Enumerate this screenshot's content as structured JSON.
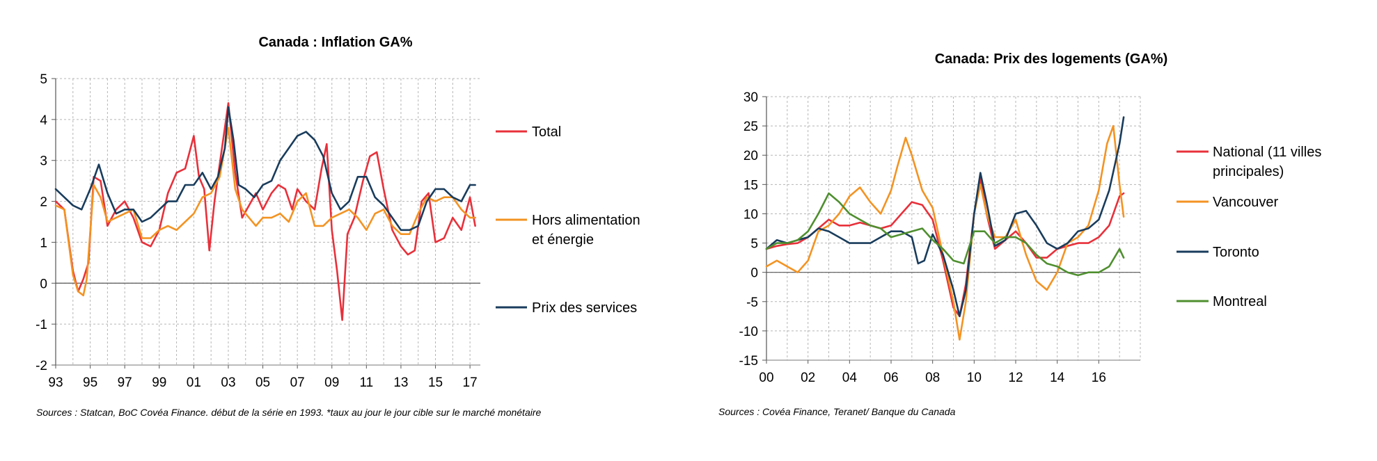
{
  "chart_data": [
    {
      "type": "line",
      "title": "Canada : Inflation GA%",
      "source": "Sources : Statcan, BoC Covéa Finance. début de la série en 1993. *taux au jour le jour cible  sur le marché monétaire",
      "xlim": [
        1993,
        2017.6
      ],
      "ylim": [
        -2,
        5
      ],
      "y_ticks": [
        "5",
        "4",
        "3",
        "2",
        "1",
        "0",
        "-1",
        "-2"
      ],
      "x_ticks": [
        "93",
        "95",
        "97",
        "99",
        "01",
        "03",
        "05",
        "07",
        "09",
        "11",
        "13",
        "15",
        "17"
      ],
      "series": [
        {
          "name": "Total",
          "color": "#e8303a",
          "x": [
            1993.0,
            1993.5,
            1994.0,
            1994.3,
            1994.6,
            1994.9,
            1995.2,
            1995.6,
            1996.0,
            1996.5,
            1997.0,
            1997.5,
            1998.0,
            1998.5,
            1999.0,
            1999.5,
            2000.0,
            2000.5,
            2001.0,
            2001.3,
            2001.6,
            2001.9,
            2002.2,
            2002.6,
            2003.0,
            2003.4,
            2003.8,
            2004.2,
            2004.6,
            2005.0,
            2005.5,
            2005.9,
            2006.3,
            2006.7,
            2007.0,
            2007.5,
            2008.0,
            2008.4,
            2008.7,
            2009.0,
            2009.3,
            2009.6,
            2009.9,
            2010.3,
            2010.8,
            2011.2,
            2011.6,
            2012.0,
            2012.5,
            2013.0,
            2013.4,
            2013.8,
            2014.2,
            2014.6,
            2015.0,
            2015.5,
            2016.0,
            2016.5,
            2017.0,
            2017.3
          ],
          "values": [
            2.0,
            1.8,
            0.3,
            -0.2,
            0.1,
            0.5,
            2.6,
            2.5,
            1.4,
            1.8,
            2.0,
            1.6,
            1.0,
            0.9,
            1.3,
            2.2,
            2.7,
            2.8,
            3.6,
            2.6,
            2.3,
            0.8,
            2.0,
            3.2,
            4.4,
            2.7,
            1.6,
            1.9,
            2.2,
            1.8,
            2.2,
            2.4,
            2.3,
            1.8,
            2.3,
            2.0,
            1.8,
            2.8,
            3.4,
            1.3,
            0.3,
            -0.9,
            1.2,
            1.6,
            2.5,
            3.1,
            3.2,
            2.3,
            1.3,
            0.9,
            0.7,
            0.8,
            2.0,
            2.2,
            1.0,
            1.1,
            1.6,
            1.3,
            2.1,
            1.4
          ]
        },
        {
          "name": "Hors alimentation et énergie",
          "color": "#f39322",
          "x": [
            1993.0,
            1993.5,
            1994.0,
            1994.3,
            1994.6,
            1994.8,
            1995.2,
            1995.6,
            1996.0,
            1996.5,
            1997.0,
            1997.5,
            1998.0,
            1998.5,
            1999.0,
            1999.5,
            2000.0,
            2000.5,
            2001.0,
            2001.5,
            2002.0,
            2002.5,
            2003.0,
            2003.4,
            2003.8,
            2004.2,
            2004.6,
            2005.0,
            2005.5,
            2006.0,
            2006.5,
            2007.0,
            2007.5,
            2008.0,
            2008.5,
            2009.0,
            2009.5,
            2010.0,
            2010.5,
            2011.0,
            2011.5,
            2012.0,
            2012.5,
            2013.0,
            2013.5,
            2014.0,
            2014.5,
            2015.0,
            2015.5,
            2016.0,
            2016.5,
            2017.0,
            2017.3
          ],
          "values": [
            1.9,
            1.8,
            0.2,
            -0.2,
            -0.3,
            0.1,
            2.4,
            2.1,
            1.5,
            1.6,
            1.7,
            1.8,
            1.1,
            1.1,
            1.3,
            1.4,
            1.3,
            1.5,
            1.7,
            2.1,
            2.2,
            2.6,
            3.8,
            2.3,
            1.8,
            1.6,
            1.4,
            1.6,
            1.6,
            1.7,
            1.5,
            2.0,
            2.2,
            1.4,
            1.4,
            1.6,
            1.7,
            1.8,
            1.6,
            1.3,
            1.7,
            1.8,
            1.4,
            1.2,
            1.2,
            1.7,
            2.1,
            2.0,
            2.1,
            2.1,
            1.8,
            1.6,
            1.6
          ]
        },
        {
          "name": "Prix des services",
          "color": "#193c5c",
          "x": [
            1993.0,
            1993.5,
            1994.0,
            1994.5,
            1995.0,
            1995.5,
            1996.0,
            1996.5,
            1997.0,
            1997.5,
            1998.0,
            1998.5,
            1999.0,
            1999.5,
            2000.0,
            2000.5,
            2001.0,
            2001.5,
            2002.0,
            2002.4,
            2002.8,
            2003.0,
            2003.3,
            2003.6,
            2004.0,
            2004.5,
            2005.0,
            2005.5,
            2006.0,
            2006.5,
            2007.0,
            2007.5,
            2008.0,
            2008.5,
            2009.0,
            2009.5,
            2010.0,
            2010.5,
            2011.0,
            2011.5,
            2012.0,
            2012.5,
            2013.0,
            2013.5,
            2014.0,
            2014.5,
            2015.0,
            2015.5,
            2016.0,
            2016.5,
            2017.0,
            2017.3
          ],
          "values": [
            2.3,
            2.1,
            1.9,
            1.8,
            2.3,
            2.9,
            2.2,
            1.7,
            1.8,
            1.8,
            1.5,
            1.6,
            1.8,
            2.0,
            2.0,
            2.4,
            2.4,
            2.7,
            2.3,
            2.6,
            3.3,
            4.3,
            3.5,
            2.4,
            2.3,
            2.1,
            2.4,
            2.5,
            3.0,
            3.3,
            3.6,
            3.7,
            3.5,
            3.1,
            2.2,
            1.8,
            2.0,
            2.6,
            2.6,
            2.1,
            1.9,
            1.6,
            1.3,
            1.3,
            1.4,
            2.0,
            2.3,
            2.3,
            2.1,
            2.0,
            2.4,
            2.4
          ]
        }
      ]
    },
    {
      "type": "line",
      "title": "Canada: Prix des logements (GA%)",
      "source": "Sources : Covéa Finance, Teranet/ Banque du Canada",
      "xlim": [
        2000,
        2018
      ],
      "ylim": [
        -15,
        30
      ],
      "y_ticks": [
        "30",
        "25",
        "20",
        "15",
        "10",
        "5",
        "0",
        "-5",
        "-10",
        "-15"
      ],
      "x_ticks": [
        "00",
        "02",
        "04",
        "06",
        "08",
        "10",
        "12",
        "14",
        "16"
      ],
      "series": [
        {
          "name": "National (11 villes principales)",
          "color": "#e8303a",
          "x": [
            2000.0,
            2000.5,
            2001.0,
            2001.5,
            2002.0,
            2002.5,
            2003.0,
            2003.5,
            2004.0,
            2004.5,
            2005.0,
            2005.5,
            2006.0,
            2006.5,
            2007.0,
            2007.5,
            2008.0,
            2008.5,
            2009.0,
            2009.3,
            2009.6,
            2010.0,
            2010.3,
            2010.6,
            2011.0,
            2011.5,
            2012.0,
            2012.5,
            2013.0,
            2013.5,
            2014.0,
            2014.5,
            2015.0,
            2015.5,
            2016.0,
            2016.5,
            2017.0,
            2017.2
          ],
          "values": [
            4.0,
            4.5,
            4.8,
            5.0,
            6.0,
            7.5,
            9.0,
            8.0,
            8.0,
            8.5,
            8.0,
            7.5,
            8.0,
            10.0,
            12.0,
            11.5,
            9.0,
            2.0,
            -6.0,
            -7.5,
            -2.0,
            10.0,
            16.0,
            10.0,
            4.0,
            5.5,
            7.0,
            5.0,
            2.5,
            2.5,
            4.0,
            4.5,
            5.0,
            5.0,
            6.0,
            8.0,
            13.0,
            13.5
          ]
        },
        {
          "name": "Vancouver",
          "color": "#f39322",
          "x": [
            2000.0,
            2000.5,
            2001.0,
            2001.5,
            2002.0,
            2002.5,
            2003.0,
            2003.5,
            2004.0,
            2004.5,
            2005.0,
            2005.5,
            2006.0,
            2006.3,
            2006.7,
            2007.0,
            2007.5,
            2008.0,
            2008.5,
            2009.0,
            2009.3,
            2009.6,
            2010.0,
            2010.3,
            2010.6,
            2011.0,
            2011.5,
            2012.0,
            2012.5,
            2013.0,
            2013.5,
            2014.0,
            2014.5,
            2015.0,
            2015.5,
            2016.0,
            2016.4,
            2016.7,
            2017.0,
            2017.2
          ],
          "values": [
            1.0,
            2.0,
            1.0,
            0.0,
            2.0,
            7.0,
            8.0,
            10.0,
            13.0,
            14.5,
            12.0,
            10.0,
            14.0,
            18.0,
            23.0,
            20.0,
            14.0,
            11.0,
            3.0,
            -5.0,
            -11.5,
            -5.0,
            10.0,
            15.0,
            10.0,
            6.0,
            6.0,
            9.0,
            3.0,
            -1.5,
            -3.0,
            0.0,
            5.0,
            6.0,
            8.0,
            14.0,
            22.0,
            25.0,
            15.0,
            9.5
          ]
        },
        {
          "name": "Toronto",
          "color": "#193c5c",
          "x": [
            2000.0,
            2000.5,
            2001.0,
            2001.5,
            2002.0,
            2002.5,
            2003.0,
            2003.5,
            2004.0,
            2004.5,
            2005.0,
            2005.5,
            2006.0,
            2006.5,
            2007.0,
            2007.3,
            2007.6,
            2008.0,
            2008.5,
            2009.0,
            2009.3,
            2009.6,
            2010.0,
            2010.3,
            2010.6,
            2011.0,
            2011.5,
            2012.0,
            2012.5,
            2013.0,
            2013.5,
            2014.0,
            2014.5,
            2015.0,
            2015.5,
            2016.0,
            2016.5,
            2017.0,
            2017.2
          ],
          "values": [
            4.0,
            5.5,
            5.0,
            5.5,
            6.0,
            7.5,
            7.0,
            6.0,
            5.0,
            5.0,
            5.0,
            6.0,
            7.0,
            7.0,
            6.0,
            1.5,
            2.0,
            6.5,
            3.0,
            -3.0,
            -7.5,
            -3.0,
            10.0,
            17.0,
            12.0,
            4.5,
            5.5,
            10.0,
            10.5,
            8.0,
            5.0,
            4.0,
            5.0,
            7.0,
            7.5,
            9.0,
            14.0,
            22.0,
            26.5
          ]
        },
        {
          "name": "Montreal",
          "color": "#4f8f2f",
          "x": [
            2000.0,
            2000.5,
            2001.0,
            2001.5,
            2002.0,
            2002.5,
            2003.0,
            2003.5,
            2004.0,
            2004.5,
            2005.0,
            2005.5,
            2006.0,
            2006.5,
            2007.0,
            2007.5,
            2008.0,
            2008.5,
            2009.0,
            2009.5,
            2010.0,
            2010.5,
            2011.0,
            2011.5,
            2012.0,
            2012.5,
            2013.0,
            2013.5,
            2014.0,
            2014.5,
            2015.0,
            2015.5,
            2016.0,
            2016.5,
            2017.0,
            2017.2
          ],
          "values": [
            4.0,
            5.0,
            5.0,
            5.5,
            7.0,
            10.0,
            13.5,
            12.0,
            10.0,
            9.0,
            8.0,
            7.5,
            6.0,
            6.5,
            7.0,
            7.5,
            5.5,
            4.0,
            2.0,
            1.5,
            7.0,
            7.0,
            5.0,
            6.0,
            6.0,
            5.0,
            3.0,
            1.5,
            1.0,
            0.0,
            -0.5,
            0.0,
            0.0,
            1.0,
            4.0,
            2.5
          ]
        }
      ]
    }
  ]
}
